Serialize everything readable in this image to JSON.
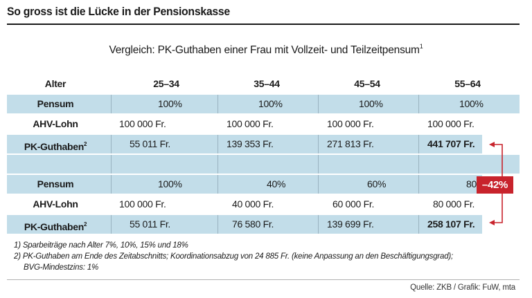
{
  "headline": "So gross ist die Lücke in der Pensionskasse",
  "subtitle": {
    "text": "Vergleich: PK-Guthaben einer Frau mit Vollzeit- und Teilzeitpensum",
    "sup": "1"
  },
  "header": {
    "label": "Alter",
    "cols": [
      "25–34",
      "35–44",
      "45–54",
      "55–64"
    ]
  },
  "full_time": {
    "pensum": {
      "label": "Pensum",
      "values": [
        "100%",
        "100%",
        "100%",
        "100%"
      ]
    },
    "ahv": {
      "label": "AHV-Lohn",
      "values": [
        "100 000 Fr.",
        "100 000 Fr.",
        "100 000 Fr.",
        "100 000 Fr."
      ]
    },
    "pk": {
      "label": "PK-Guthaben",
      "sup": "2",
      "values": [
        "55 011 Fr.",
        "139 353 Fr.",
        "271 813 Fr.",
        "441 707 Fr."
      ]
    }
  },
  "part_time": {
    "pensum": {
      "label": "Pensum",
      "values": [
        "100%",
        "40%",
        "60%",
        "80%"
      ]
    },
    "ahv": {
      "label": "AHV-Lohn",
      "values": [
        "100 000 Fr.",
        "40 000 Fr.",
        "60 000 Fr.",
        "80 000 Fr."
      ]
    },
    "pk": {
      "label": "PK-Guthaben",
      "sup": "2",
      "values": [
        "55 011 Fr.",
        "76 580 Fr.",
        "139 699 Fr.",
        "258 107 Fr."
      ]
    }
  },
  "difference": "–42%",
  "footnotes": [
    "1) Sparbeiträge nach Alter 7%, 10%, 15% und 18%",
    "2) PK-Guthaben am Ende des Zeitabschnitts; Koordinationsabzug von 24 885 Fr. (keine Anpassung an den Beschäftigungsgrad);",
    "BVG-Mindestzins: 1%"
  ],
  "source": "Quelle: ZKB / Grafik: FuW, mta",
  "colors": {
    "band": "#c2dde9",
    "accent": "#c8232c",
    "arrow": "#c8232c"
  }
}
